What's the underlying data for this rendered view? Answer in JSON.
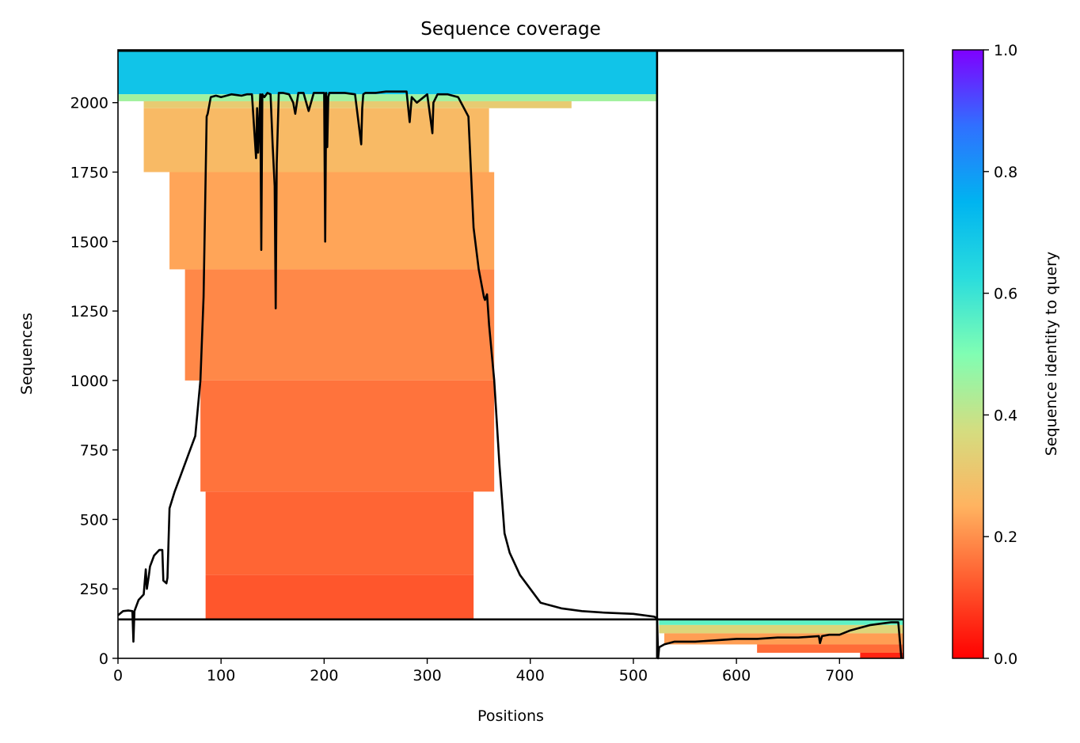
{
  "chart_data": {
    "type": "heatmap",
    "title": "Sequence coverage",
    "xlabel": "Positions",
    "ylabel": "Sequences",
    "xlim": [
      0,
      762
    ],
    "ylim": [
      0,
      2190
    ],
    "xticks": [
      0,
      100,
      200,
      300,
      400,
      500,
      600,
      700
    ],
    "yticks": [
      0,
      250,
      500,
      750,
      1000,
      1250,
      1500,
      1750,
      2000
    ],
    "colorbar": {
      "label": "Sequence identity to query",
      "range": [
        0.0,
        1.0
      ],
      "ticks": [
        "0.0",
        "0.2",
        "0.4",
        "0.6",
        "0.8",
        "1.0"
      ],
      "colormap": "rainbow_r"
    },
    "chain_boundary": {
      "x": 523,
      "y": 140
    },
    "identity_bands": [
      {
        "x0": 0,
        "x1": 523,
        "y0": 2030,
        "y1": 2190,
        "identity": 0.7
      },
      {
        "x0": 0,
        "x1": 523,
        "y0": 2005,
        "y1": 2030,
        "identity": 0.45
      },
      {
        "x0": 25,
        "x1": 440,
        "y0": 1980,
        "y1": 2005,
        "identity": 0.32
      },
      {
        "x0": 25,
        "x1": 360,
        "y0": 1750,
        "y1": 1980,
        "identity": 0.27
      },
      {
        "x0": 50,
        "x1": 365,
        "y0": 1400,
        "y1": 1750,
        "identity": 0.23
      },
      {
        "x0": 65,
        "x1": 365,
        "y0": 1000,
        "y1": 1400,
        "identity": 0.19
      },
      {
        "x0": 80,
        "x1": 365,
        "y0": 600,
        "y1": 1000,
        "identity": 0.16
      },
      {
        "x0": 85,
        "x1": 345,
        "y0": 300,
        "y1": 600,
        "identity": 0.14
      },
      {
        "x0": 85,
        "x1": 345,
        "y0": 140,
        "y1": 300,
        "identity": 0.12
      },
      {
        "x0": 525,
        "x1": 762,
        "y0": 120,
        "y1": 140,
        "identity": 0.55
      },
      {
        "x0": 525,
        "x1": 762,
        "y0": 90,
        "y1": 120,
        "identity": 0.35
      },
      {
        "x0": 530,
        "x1": 762,
        "y0": 50,
        "y1": 90,
        "identity": 0.22
      },
      {
        "x0": 620,
        "x1": 762,
        "y0": 20,
        "y1": 50,
        "identity": 0.15
      },
      {
        "x0": 720,
        "x1": 762,
        "y0": 0,
        "y1": 20,
        "identity": 0.05
      }
    ],
    "coverage_line": {
      "x": [
        0,
        5,
        10,
        14,
        15,
        16,
        17,
        20,
        25,
        27,
        28,
        30,
        31,
        35,
        40,
        43,
        44,
        47,
        48,
        50,
        55,
        60,
        65,
        70,
        75,
        80,
        83,
        86,
        87,
        90,
        95,
        100,
        110,
        120,
        125,
        130,
        134,
        135,
        136,
        138,
        139,
        140,
        142,
        145,
        148,
        150,
        152,
        153,
        154,
        156,
        160,
        166,
        170,
        172,
        175,
        180,
        185,
        190,
        200,
        201,
        202,
        203,
        204,
        205,
        210,
        220,
        230,
        236,
        237,
        238,
        240,
        250,
        260,
        270,
        280,
        283,
        285,
        290,
        300,
        305,
        306,
        310,
        320,
        330,
        340,
        345,
        350,
        355,
        356,
        358,
        360,
        365,
        370,
        375,
        380,
        390,
        400,
        410,
        420,
        430,
        450,
        470,
        500,
        520,
        523,
        524,
        525,
        530,
        540,
        560,
        580,
        600,
        620,
        640,
        660,
        680,
        681,
        683,
        690,
        700,
        710,
        720,
        730,
        750,
        757,
        760
      ],
      "y": [
        155,
        170,
        172,
        170,
        60,
        170,
        180,
        210,
        230,
        320,
        250,
        300,
        330,
        370,
        390,
        390,
        280,
        270,
        290,
        540,
        600,
        650,
        700,
        750,
        800,
        1000,
        1300,
        1950,
        1960,
        2020,
        2025,
        2020,
        2030,
        2025,
        2030,
        2030,
        1800,
        1980,
        1820,
        2030,
        1470,
        2030,
        2020,
        2035,
        2030,
        1850,
        1700,
        1260,
        1780,
        2035,
        2035,
        2030,
        2000,
        1960,
        2035,
        2035,
        1970,
        2035,
        2035,
        1500,
        2035,
        1840,
        2020,
        2035,
        2035,
        2035,
        2030,
        1850,
        1980,
        2030,
        2035,
        2035,
        2040,
        2040,
        2040,
        1930,
        2020,
        2000,
        2030,
        1890,
        2000,
        2030,
        2030,
        2020,
        1950,
        1550,
        1400,
        1300,
        1290,
        1310,
        1200,
        1000,
        700,
        450,
        380,
        300,
        250,
        200,
        190,
        180,
        170,
        165,
        160,
        150,
        145,
        0,
        40,
        50,
        60,
        60,
        65,
        70,
        70,
        75,
        75,
        80,
        55,
        80,
        85,
        85,
        100,
        110,
        120,
        130,
        130,
        0
      ]
    }
  }
}
